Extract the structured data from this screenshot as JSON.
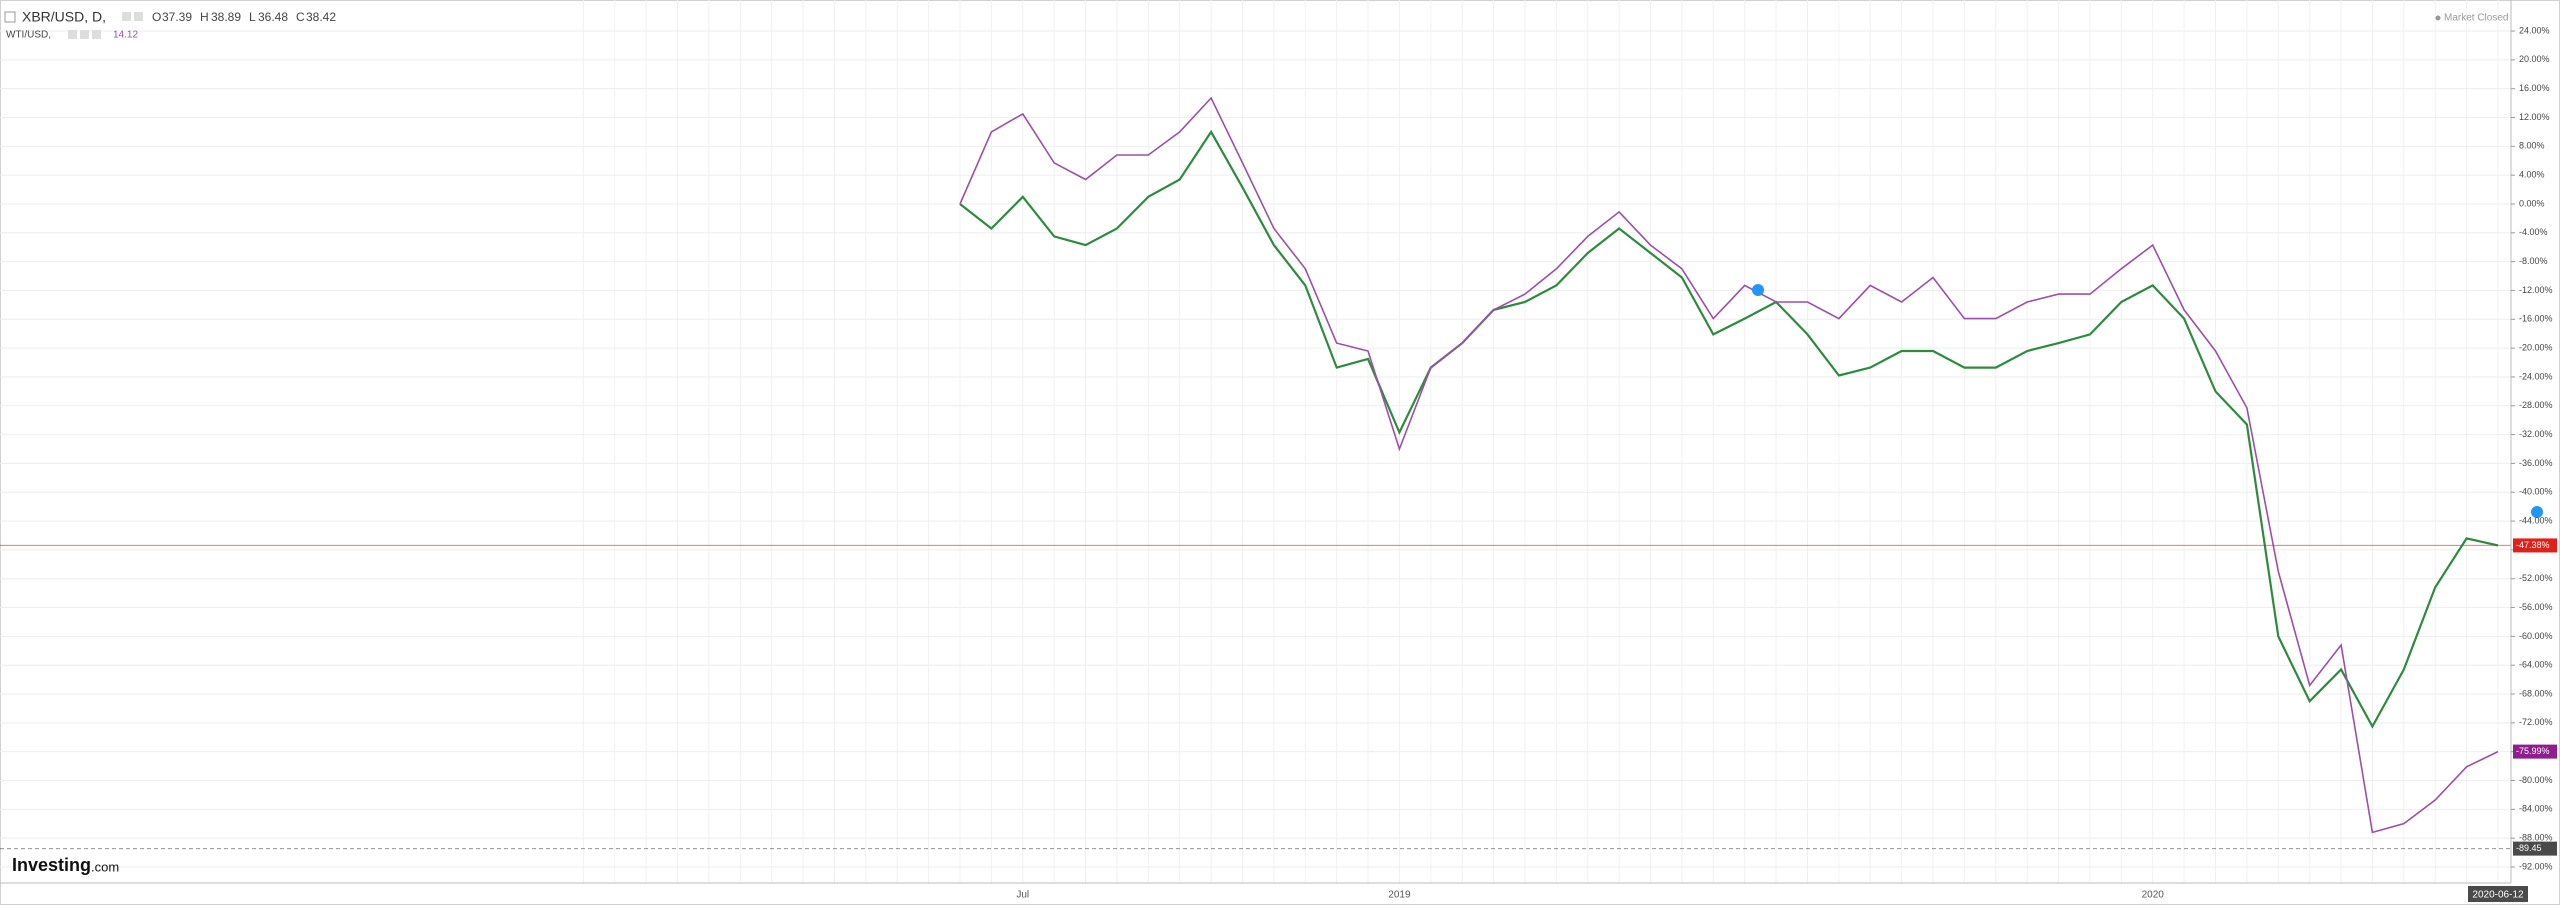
{
  "chart_data": {
    "type": "line",
    "header": {
      "symbol": "XBR/USD, D,",
      "o_label": "O",
      "open": 37.39,
      "h_label": "H",
      "high": 38.89,
      "l_label": "L",
      "low": 36.48,
      "c_label": "C",
      "close": 38.42,
      "compare_symbol": "WTI/USD,",
      "compare_value": 14.12,
      "status": "Market Closed"
    },
    "logo": {
      "brand": "Investing",
      "suffix": ".com"
    },
    "categories": [
      null,
      null,
      "Jul",
      null,
      null,
      null,
      null,
      null,
      null,
      null,
      null,
      null,
      null,
      null,
      "2019",
      null,
      null,
      null,
      null,
      null,
      null,
      null,
      null,
      null,
      null,
      null,
      null,
      null,
      null,
      null,
      null,
      null,
      null,
      null,
      null,
      null,
      null,
      null,
      "2020",
      null,
      null,
      null,
      null,
      null,
      null,
      null,
      null,
      null,
      null,
      "2020-06-12"
    ],
    "series": [
      {
        "name": "XBR/USD",
        "color": "#2e8b3e",
        "values": [
          0,
          -3.4,
          1,
          -4.5,
          -5.7,
          -3.4,
          1,
          3.4,
          10,
          2.3,
          -5.7,
          -11.3,
          -22.7,
          -21.5,
          -31.7,
          -22.7,
          -19.3,
          -14.7,
          -13.6,
          -11.3,
          -6.8,
          -3.4,
          -6.8,
          -10.2,
          -18.1,
          -15.9,
          -13.6,
          -18.1,
          -23.8,
          -22.7,
          -20.4,
          -20.4,
          -22.7,
          -22.7,
          -20.4,
          -19.3,
          -18.1,
          -13.6,
          -11.3,
          -15.9,
          -26,
          -30.6,
          -60,
          -69,
          -64.6,
          -72.5,
          -64.6,
          -53.2,
          -46.4,
          -47.38
        ]
      },
      {
        "name": "WTI/USD",
        "color": "#9c4fa8",
        "values": [
          0,
          10,
          12.5,
          5.7,
          3.4,
          6.8,
          6.8,
          10,
          14.7,
          5.7,
          -3.4,
          -9,
          -19.3,
          -20.4,
          -34,
          -22.7,
          -19.3,
          -14.7,
          -12.5,
          -9,
          -4.5,
          -1.1,
          -5.7,
          -9,
          -15.9,
          -11.3,
          -13.6,
          -13.6,
          -15.9,
          -11.3,
          -13.6,
          -10.2,
          -15.9,
          -15.9,
          -13.6,
          -12.5,
          -12.5,
          -9,
          -5.7,
          -14.7,
          -20.4,
          -28.3,
          -51,
          -66.8,
          -61.2,
          -87.2,
          -86,
          -82.7,
          -78.1,
          -75.99
        ]
      }
    ],
    "price_markers": [
      {
        "value": -47.38,
        "label": "-47.38%",
        "color": "#e0201b"
      },
      {
        "value": -75.99,
        "label": "-75.99%",
        "color": "#8e1e8c"
      },
      {
        "value": -89.45,
        "label": "-89.45",
        "color": "#4a4a4a"
      }
    ],
    "ylim": [
      -94,
      28
    ],
    "yticks": [
      {
        "value": 24,
        "label": "24.00%"
      },
      {
        "value": 20,
        "label": "20.00%"
      },
      {
        "value": 16,
        "label": "16.00%"
      },
      {
        "value": 12,
        "label": "12.00%"
      },
      {
        "value": 8,
        "label": "8.00%"
      },
      {
        "value": 4,
        "label": "4.00%"
      },
      {
        "value": 0,
        "label": "0.00%"
      },
      {
        "value": -4,
        "label": "-4.00%"
      },
      {
        "value": -8,
        "label": "-8.00%"
      },
      {
        "value": -12,
        "label": "-12.00%"
      },
      {
        "value": -16,
        "label": "-16.00%"
      },
      {
        "value": -20,
        "label": "-20.00%"
      },
      {
        "value": -24,
        "label": "-24.00%"
      },
      {
        "value": -28,
        "label": "-28.00%"
      },
      {
        "value": -32,
        "label": "-32.00%"
      },
      {
        "value": -36,
        "label": "-36.00%"
      },
      {
        "value": -40,
        "label": "-40.00%"
      },
      {
        "value": -44,
        "label": "-44.00%"
      },
      {
        "value": -48,
        "label": "-48.00%"
      },
      {
        "value": -52,
        "label": "-52.00%"
      },
      {
        "value": -56,
        "label": "-56.00%"
      },
      {
        "value": -60,
        "label": "-60.00%"
      },
      {
        "value": -64,
        "label": "-64.00%"
      },
      {
        "value": -68,
        "label": "-68.00%"
      },
      {
        "value": -72,
        "label": "-72.00%"
      },
      {
        "value": -76,
        "label": "-76.00%"
      },
      {
        "value": -80,
        "label": "-80.00%"
      },
      {
        "value": -84,
        "label": "-84.00%"
      },
      {
        "value": -88,
        "label": "-88.00%"
      },
      {
        "value": -92,
        "label": "-92.00%"
      }
    ],
    "grid": true
  }
}
